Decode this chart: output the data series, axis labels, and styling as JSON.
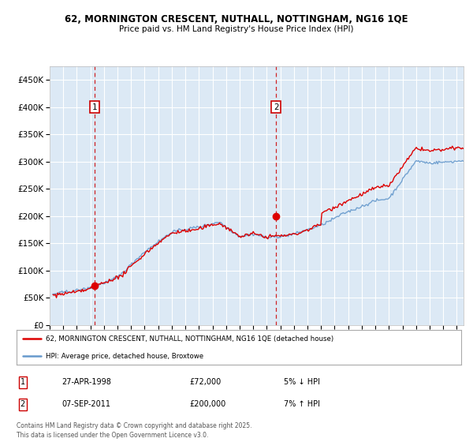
{
  "title_line1": "62, MORNINGTON CRESCENT, NUTHALL, NOTTINGHAM, NG16 1QE",
  "title_line2": "Price paid vs. HM Land Registry's House Price Index (HPI)",
  "ytick_values": [
    0,
    50000,
    100000,
    150000,
    200000,
    250000,
    300000,
    350000,
    400000,
    450000
  ],
  "ylim": [
    0,
    475000
  ],
  "xlim_start": 1995.25,
  "xlim_end": 2025.5,
  "plot_bg_color": "#dce9f5",
  "grid_color": "#ffffff",
  "sale1_x": 1998.32,
  "sale1_y": 72000,
  "sale2_x": 2011.68,
  "sale2_y": 200000,
  "sale1_date": "27-APR-1998",
  "sale1_price": "£72,000",
  "sale1_hpi": "5% ↓ HPI",
  "sale2_date": "07-SEP-2011",
  "sale2_price": "£200,000",
  "sale2_hpi": "7% ↑ HPI",
  "red_line_color": "#dd0000",
  "blue_line_color": "#6699cc",
  "legend1_label": "62, MORNINGTON CRESCENT, NUTHALL, NOTTINGHAM, NG16 1QE (detached house)",
  "legend2_label": "HPI: Average price, detached house, Broxtowe",
  "footer_text": "Contains HM Land Registry data © Crown copyright and database right 2025.\nThis data is licensed under the Open Government Licence v3.0.",
  "marker_box_color": "#cc0000",
  "vline_color": "#cc0000"
}
